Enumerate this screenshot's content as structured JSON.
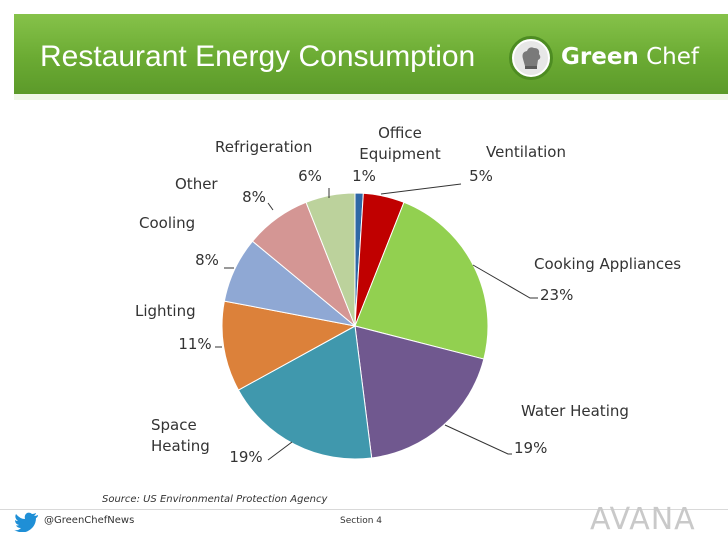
{
  "header": {
    "title": "Restaurant Energy Consumption",
    "logo": {
      "green": "Green",
      "chef": "Chef",
      "icon": "chef-hat-icon"
    }
  },
  "footer": {
    "source": "Source: US Environmental Protection Agency",
    "handle": "@GreenChefNews",
    "section": "Section 4",
    "brand": "AVANA",
    "twitter_icon": "twitter-bird-icon"
  },
  "colors": {
    "header_green": "#6bab33"
  },
  "chart_data": {
    "type": "pie",
    "title": "Restaurant Energy Consumption",
    "slices": [
      {
        "label": "Office Equipment",
        "label_lines": [
          "Office",
          "Equipment"
        ],
        "value": 1,
        "value_label": "1%",
        "color": "#2f68a6"
      },
      {
        "label": "Ventilation",
        "label_lines": [
          "Ventilation"
        ],
        "value": 5,
        "value_label": "5%",
        "color": "#c00000"
      },
      {
        "label": "Cooking Appliances",
        "label_lines": [
          "Cooking Appliances"
        ],
        "value": 23,
        "value_label": "23%",
        "color": "#92d050"
      },
      {
        "label": "Water Heating",
        "label_lines": [
          "Water Heating"
        ],
        "value": 19,
        "value_label": "19%",
        "color": "#70588f"
      },
      {
        "label": "Space Heating",
        "label_lines": [
          "Space",
          "Heating"
        ],
        "value": 19,
        "value_label": "19%",
        "color": "#4098ad"
      },
      {
        "label": "Lighting",
        "label_lines": [
          "Lighting"
        ],
        "value": 11,
        "value_label": "11%",
        "color": "#dc813a"
      },
      {
        "label": "Cooling",
        "label_lines": [
          "Cooling"
        ],
        "value": 8,
        "value_label": "8%",
        "color": "#8fa8d4"
      },
      {
        "label": "Other",
        "label_lines": [
          "Other"
        ],
        "value": 8,
        "value_label": "8%",
        "color": "#d49694"
      },
      {
        "label": "Refrigeration",
        "label_lines": [
          "Refrigeration"
        ],
        "value": 6,
        "value_label": "6%",
        "color": "#bcd29c"
      }
    ]
  }
}
